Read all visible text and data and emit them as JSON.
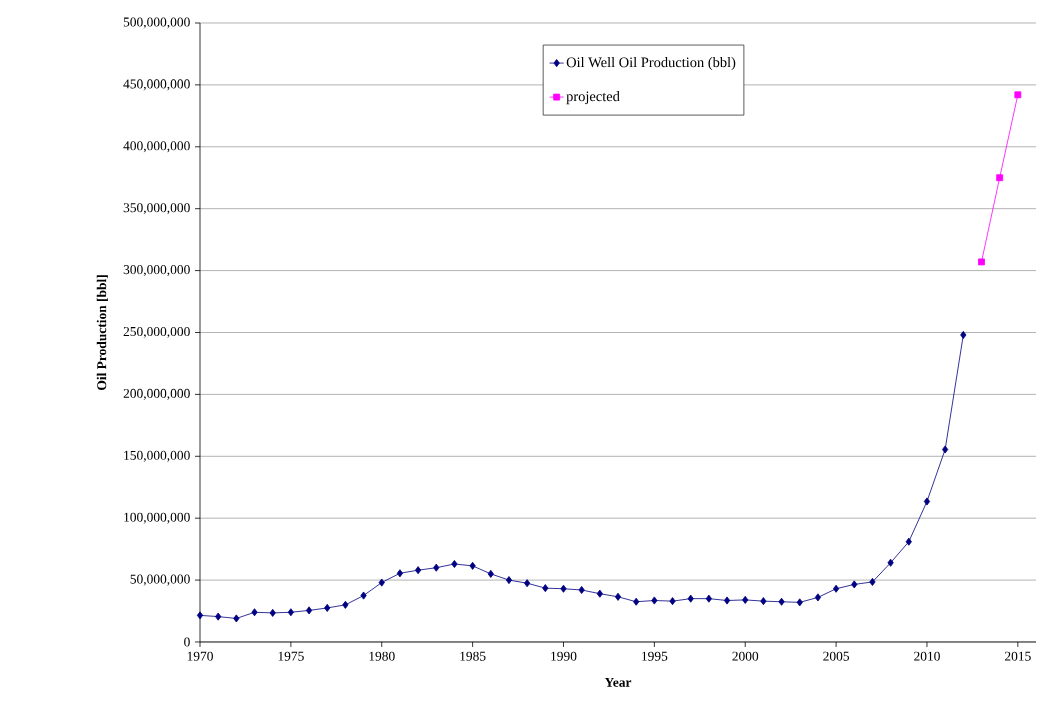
{
  "chart_data": {
    "type": "line",
    "xlabel": "Year",
    "ylabel": "Oil Production [bbl]",
    "xlim": [
      1970,
      2016
    ],
    "ylim": [
      0,
      500000000
    ],
    "xticks": [
      1970,
      1975,
      1980,
      1985,
      1990,
      1995,
      2000,
      2005,
      2010,
      2015
    ],
    "yticks": [
      {
        "value": 0,
        "label": "0"
      },
      {
        "value": 50000000,
        "label": "50,000,000"
      },
      {
        "value": 100000000,
        "label": "100,000,000"
      },
      {
        "value": 150000000,
        "label": "150,000,000"
      },
      {
        "value": 200000000,
        "label": "200,000,000"
      },
      {
        "value": 250000000,
        "label": "250,000,000"
      },
      {
        "value": 300000000,
        "label": "300,000,000"
      },
      {
        "value": 350000000,
        "label": "350,000,000"
      },
      {
        "value": 400000000,
        "label": "400,000,000"
      },
      {
        "value": 450000000,
        "label": "450,000,000"
      },
      {
        "value": 500000000,
        "label": "500,000,000"
      }
    ],
    "grid": "y",
    "legend": "top",
    "line_style": "solid",
    "series": [
      {
        "name": "Oil Well Oil Production (bbl)",
        "color": "#000080",
        "marker": "diamond",
        "x": [
          1970,
          1971,
          1972,
          1973,
          1974,
          1975,
          1976,
          1977,
          1978,
          1979,
          1980,
          1981,
          1982,
          1983,
          1984,
          1985,
          1986,
          1987,
          1988,
          1989,
          1990,
          1991,
          1992,
          1993,
          1994,
          1995,
          1996,
          1997,
          1998,
          1999,
          2000,
          2001,
          2002,
          2003,
          2004,
          2005,
          2006,
          2007,
          2008,
          2009,
          2010,
          2011,
          2012
        ],
        "values": [
          21500000,
          20500000,
          19000000,
          24000000,
          23500000,
          24000000,
          25500000,
          27500000,
          30000000,
          37500000,
          48000000,
          55500000,
          58000000,
          60000000,
          63000000,
          61500000,
          55000000,
          50000000,
          47500000,
          43500000,
          43000000,
          42000000,
          39000000,
          36500000,
          32500000,
          33500000,
          33000000,
          35000000,
          35000000,
          33500000,
          34000000,
          33000000,
          32500000,
          32000000,
          36000000,
          43000000,
          46500000,
          48500000,
          64000000,
          81000000,
          113500000,
          155500000,
          248000000
        ]
      },
      {
        "name": "projected",
        "color": "#ff00ff",
        "marker": "square",
        "x": [
          2013,
          2014,
          2015
        ],
        "values": [
          307000000,
          375000000,
          442000000
        ]
      }
    ]
  }
}
